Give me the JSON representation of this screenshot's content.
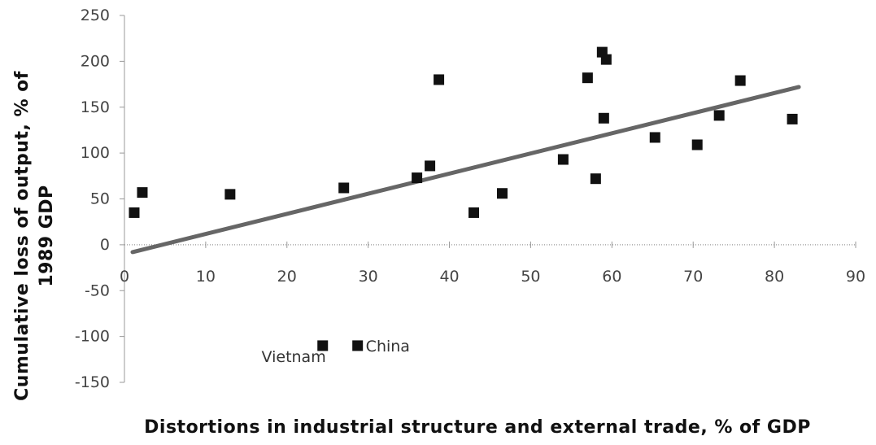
{
  "chart_data": {
    "type": "scatter",
    "title": "",
    "xlabel": "Distortions in industrial structure and external trade, % of GDP",
    "ylabel": "Cumulative loss of output, % of 1989 GDP",
    "ylabel_lines": [
      "Cumulative loss of output, % of",
      "1989 GDP"
    ],
    "xlim": [
      0,
      90
    ],
    "ylim": [
      -150,
      250
    ],
    "x_ticks": [
      0,
      10,
      20,
      30,
      40,
      50,
      60,
      70,
      80,
      90
    ],
    "y_ticks": [
      -150,
      -100,
      -50,
      0,
      50,
      100,
      150,
      200,
      250
    ],
    "x_tick_labels": [
      "0",
      "10",
      "20",
      "30",
      "40",
      "50",
      "60",
      "70",
      "80",
      "90"
    ],
    "y_tick_labels": [
      "-150",
      "-100",
      "-50",
      "0",
      "50",
      "100",
      "150",
      "200",
      "250"
    ],
    "grid": false,
    "series": [
      {
        "values": [
          {
            "x": 1.2,
            "y": 35
          },
          {
            "x": 2.2,
            "y": 57
          },
          {
            "x": 13,
            "y": 55
          },
          {
            "x": 27,
            "y": 62
          },
          {
            "x": 36,
            "y": 73
          },
          {
            "x": 37.6,
            "y": 86
          },
          {
            "x": 38.7,
            "y": 180
          },
          {
            "x": 43,
            "y": 35
          },
          {
            "x": 46.5,
            "y": 56
          },
          {
            "x": 54,
            "y": 93
          },
          {
            "x": 57,
            "y": 182
          },
          {
            "x": 58,
            "y": 72
          },
          {
            "x": 58.8,
            "y": 210
          },
          {
            "x": 59,
            "y": 138
          },
          {
            "x": 59.3,
            "y": 202
          },
          {
            "x": 65.3,
            "y": 117
          },
          {
            "x": 70.5,
            "y": 109
          },
          {
            "x": 73.2,
            "y": 141
          },
          {
            "x": 75.8,
            "y": 179
          },
          {
            "x": 82.2,
            "y": 137
          }
        ]
      }
    ],
    "trendline": {
      "x": [
        1,
        83
      ],
      "y": [
        -8,
        172
      ]
    },
    "annotations": [
      {
        "label": "Vietnam",
        "x": 24.4,
        "y": -110,
        "marker": true
      },
      {
        "label": "China",
        "x": 28.7,
        "y": -110,
        "marker": true
      }
    ],
    "colors": {
      "marker": "#111111",
      "trendline": "#666666",
      "axis": "#999999",
      "tick_text": "#444444",
      "title_text": "#111111"
    }
  }
}
